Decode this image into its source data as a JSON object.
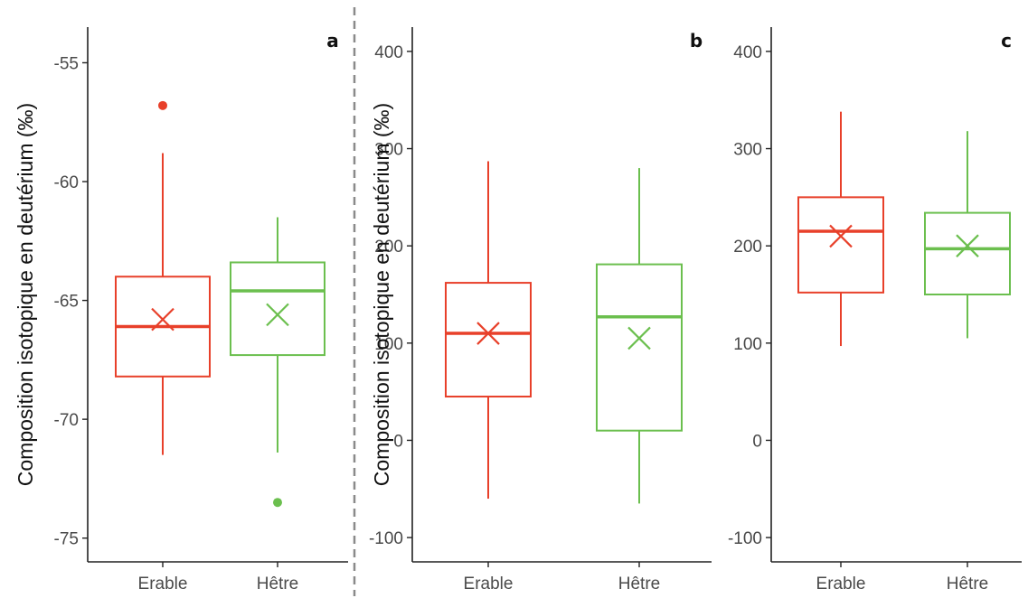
{
  "colors": {
    "erable": "#e8402a",
    "hetre": "#6bbf4e",
    "axis": "#222222",
    "divider": "#8a8a8a"
  },
  "chart_data": [
    {
      "type": "box",
      "panel": "a",
      "ylabel": "Composition isotopique en deutérium (‰)",
      "ylim": [
        -76,
        -53.5
      ],
      "yticks": [
        -75,
        -70,
        -65,
        -60,
        -55
      ],
      "categories": [
        "Erable",
        "Hêtre"
      ],
      "series": [
        {
          "category": "Erable",
          "whisker_low": -71.5,
          "q1": -68.2,
          "median": -66.1,
          "q3": -64.0,
          "whisker_high": -58.8,
          "mean": -65.8,
          "outliers": [
            -56.8
          ]
        },
        {
          "category": "Hêtre",
          "whisker_low": -71.4,
          "q1": -67.3,
          "median": -64.6,
          "q3": -63.4,
          "whisker_high": -61.5,
          "mean": -65.6,
          "outliers": [
            -73.5
          ]
        }
      ]
    },
    {
      "type": "box",
      "panel": "b",
      "ylabel": "Composition isotopique en deutérium (‰)",
      "ylim": [
        -125,
        425
      ],
      "yticks": [
        -100,
        0,
        100,
        200,
        300,
        400
      ],
      "categories": [
        "Erable",
        "Hêtre"
      ],
      "series": [
        {
          "category": "Erable",
          "whisker_low": -60,
          "q1": 45,
          "median": 110,
          "q3": 162,
          "whisker_high": 287,
          "mean": 110,
          "outliers": []
        },
        {
          "category": "Hêtre",
          "whisker_low": -65,
          "q1": 10,
          "median": 127,
          "q3": 181,
          "whisker_high": 280,
          "mean": 105,
          "outliers": []
        }
      ]
    },
    {
      "type": "box",
      "panel": "c",
      "ylabel": "",
      "ylim": [
        -125,
        425
      ],
      "yticks": [
        -100,
        0,
        100,
        200,
        300,
        400
      ],
      "categories": [
        "Erable",
        "Hêtre"
      ],
      "series": [
        {
          "category": "Erable",
          "whisker_low": 97,
          "q1": 152,
          "median": 215,
          "q3": 250,
          "whisker_high": 338,
          "mean": 210,
          "outliers": []
        },
        {
          "category": "Hêtre",
          "whisker_low": 105,
          "q1": 150,
          "median": 197,
          "q3": 234,
          "whisker_high": 318,
          "mean": 200,
          "outliers": []
        }
      ]
    }
  ]
}
